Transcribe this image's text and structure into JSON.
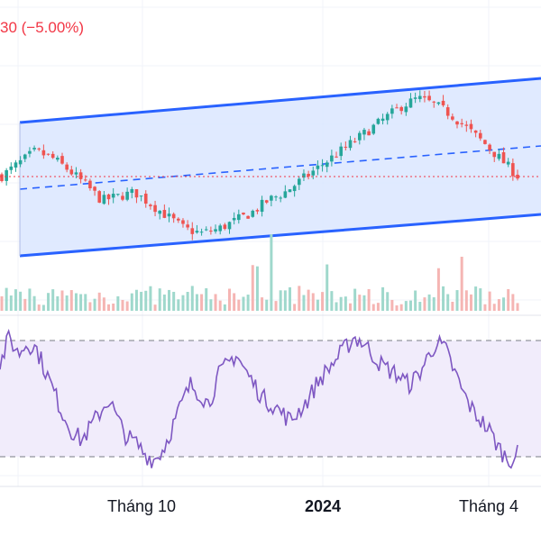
{
  "header": {
    "change_text": "30 (−5.00%)"
  },
  "colors": {
    "up": "#26a69a",
    "down": "#ef5350",
    "channel_line": "#2962ff",
    "channel_fill": "#dbe6ff",
    "rsi_line": "#7e57c2",
    "rsi_band": "#f1ecfb",
    "last_price_line": "#f23645"
  },
  "chart_data": [
    {
      "type": "candlestick",
      "panel": "price",
      "x_tick_labels": [
        "Tháng 10",
        "2024",
        "Tháng 4"
      ],
      "bold_tick": "2024",
      "overlay": "regression channel (upper, middle dashed, lower)",
      "last_price_line": "dotted",
      "close_trend": [
        112,
        118,
        124,
        121,
        115,
        108,
        100,
        102,
        104,
        98,
        92,
        86,
        84,
        86,
        90,
        94,
        100,
        104,
        110,
        116,
        122,
        128,
        134,
        140,
        146,
        150,
        147,
        142,
        135,
        128,
        120,
        112
      ]
    },
    {
      "type": "bar",
      "panel": "volume",
      "series_count": 1
    },
    {
      "type": "line",
      "panel": "RSI",
      "guide_levels": [
        70,
        30
      ],
      "ylim": [
        25,
        75
      ],
      "values": [
        62,
        72,
        66,
        70,
        68,
        60,
        52,
        44,
        38,
        35,
        40,
        45,
        50,
        42,
        36,
        34,
        30,
        28,
        32,
        40,
        48,
        55,
        52,
        48,
        58,
        62,
        66,
        60,
        55,
        50,
        48,
        45,
        42,
        46,
        50,
        56,
        60,
        64,
        68,
        72,
        70,
        66,
        62,
        60,
        58,
        55,
        58,
        64,
        70,
        68,
        60,
        52,
        46,
        42,
        38,
        32,
        28,
        30
      ]
    }
  ]
}
